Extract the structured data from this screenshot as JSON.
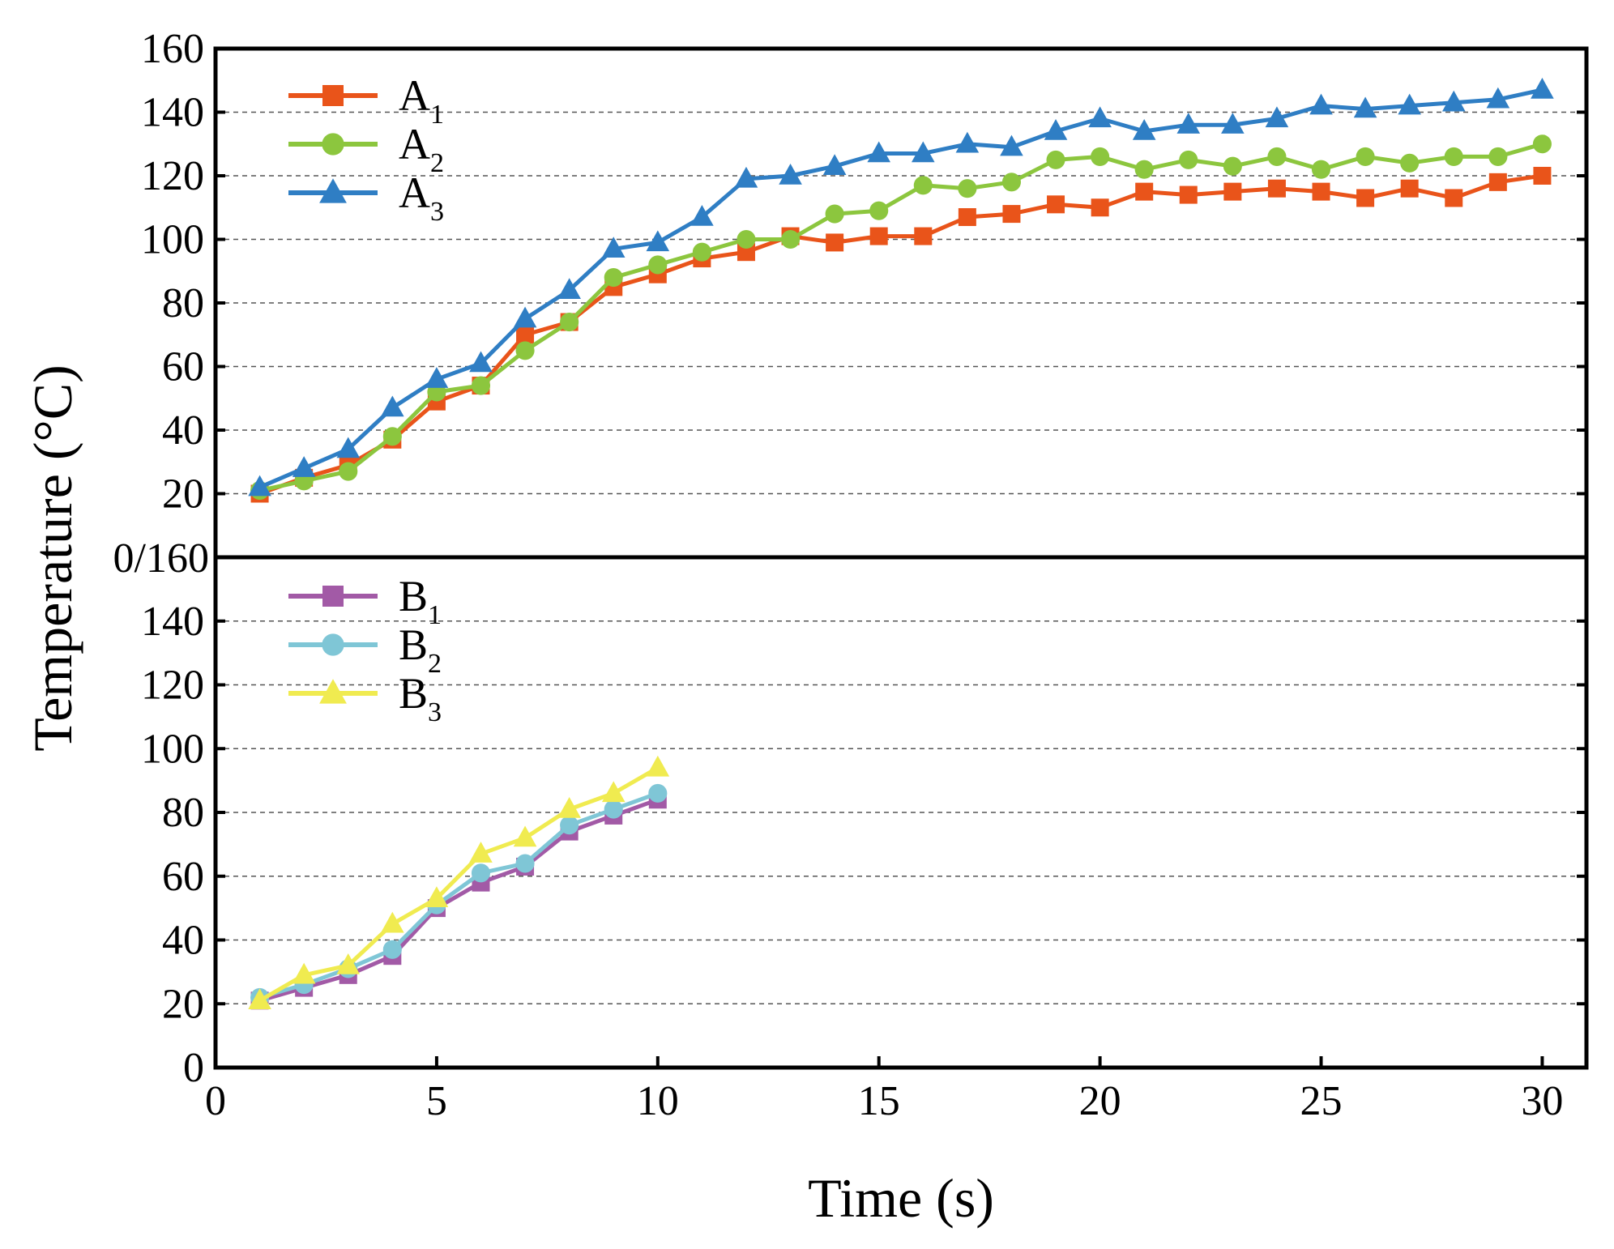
{
  "chart_data": {
    "type": "line",
    "x_label": "Time (s)",
    "y_label": "Temperature (°C)",
    "x_axis": {
      "range": [
        0,
        31
      ],
      "ticks": [
        0,
        5,
        10,
        15,
        20,
        25,
        30
      ],
      "tick_labels": [
        "0",
        "5",
        "10",
        "15",
        "20",
        "25",
        "30"
      ]
    },
    "panels": [
      {
        "id": "A",
        "y_range": [
          0,
          160
        ],
        "y_ticks": [
          20,
          40,
          60,
          80,
          100,
          120,
          140,
          160
        ],
        "y_tick_labels": [
          "20",
          "40",
          "60",
          "80",
          "100",
          "120",
          "140",
          "160"
        ],
        "gridlines": "dashed",
        "legend_position": "top-left",
        "series": [
          {
            "name": "A1",
            "label_main": "A",
            "label_sub": "1",
            "color": "#e9541a",
            "marker": "square",
            "x": [
              1,
              2,
              3,
              4,
              5,
              6,
              7,
              8,
              9,
              10,
              11,
              12,
              13,
              14,
              15,
              16,
              17,
              18,
              19,
              20,
              21,
              22,
              23,
              24,
              25,
              26,
              27,
              28,
              29,
              30
            ],
            "y": [
              20,
              25,
              29,
              37,
              49,
              54,
              70,
              74,
              85,
              89,
              94,
              96,
              101,
              99,
              101,
              101,
              107,
              108,
              111,
              110,
              115,
              114,
              115,
              116,
              115,
              113,
              116,
              113,
              118,
              120
            ]
          },
          {
            "name": "A2",
            "label_main": "A",
            "label_sub": "2",
            "color": "#8cc63e",
            "marker": "circle",
            "x": [
              1,
              2,
              3,
              4,
              5,
              6,
              7,
              8,
              9,
              10,
              11,
              12,
              13,
              14,
              15,
              16,
              17,
              18,
              19,
              20,
              21,
              22,
              23,
              24,
              25,
              26,
              27,
              28,
              29,
              30
            ],
            "y": [
              21,
              24,
              27,
              38,
              52,
              54,
              65,
              74,
              88,
              92,
              96,
              100,
              100,
              108,
              109,
              117,
              116,
              118,
              125,
              126,
              122,
              125,
              123,
              126,
              122,
              126,
              124,
              126,
              126,
              130
            ]
          },
          {
            "name": "A3",
            "label_main": "A",
            "label_sub": "3",
            "color": "#2f7ec4",
            "marker": "triangle",
            "x": [
              1,
              2,
              3,
              4,
              5,
              6,
              7,
              8,
              9,
              10,
              11,
              12,
              13,
              14,
              15,
              16,
              17,
              18,
              19,
              20,
              21,
              22,
              23,
              24,
              25,
              26,
              27,
              28,
              29,
              30
            ],
            "y": [
              22,
              28,
              34,
              47,
              56,
              61,
              75,
              84,
              97,
              99,
              107,
              119,
              120,
              123,
              127,
              127,
              130,
              129,
              134,
              138,
              134,
              136,
              136,
              138,
              142,
              141,
              142,
              143,
              144,
              147
            ]
          }
        ]
      },
      {
        "id": "B",
        "y_range": [
          0,
          160
        ],
        "y_ticks": [
          0,
          20,
          40,
          60,
          80,
          100,
          120,
          140
        ],
        "y_tick_labels": [
          "0",
          "20",
          "40",
          "60",
          "80",
          "100",
          "120",
          "140"
        ],
        "gridlines": "dashed",
        "legend_position": "top-left",
        "series": [
          {
            "name": "B1",
            "label_main": "B",
            "label_sub": "1",
            "color": "#a25aa6",
            "marker": "square",
            "x": [
              1,
              2,
              3,
              4,
              5,
              6,
              7,
              8,
              9,
              10
            ],
            "y": [
              21,
              25,
              29,
              35,
              50,
              58,
              63,
              74,
              79,
              84
            ]
          },
          {
            "name": "B2",
            "label_main": "B",
            "label_sub": "2",
            "color": "#7fc6d6",
            "marker": "circle",
            "x": [
              1,
              2,
              3,
              4,
              5,
              6,
              7,
              8,
              9,
              10
            ],
            "y": [
              22,
              26,
              31,
              37,
              51,
              61,
              64,
              76,
              81,
              86
            ]
          },
          {
            "name": "B3",
            "label_main": "B",
            "label_sub": "3",
            "color": "#f0eb50",
            "marker": "triangle",
            "x": [
              1,
              2,
              3,
              4,
              5,
              6,
              7,
              8,
              9,
              10
            ],
            "y": [
              21,
              29,
              32,
              45,
              53,
              67,
              72,
              81,
              86,
              94
            ]
          }
        ]
      }
    ],
    "panel_join_label": "0/160"
  }
}
